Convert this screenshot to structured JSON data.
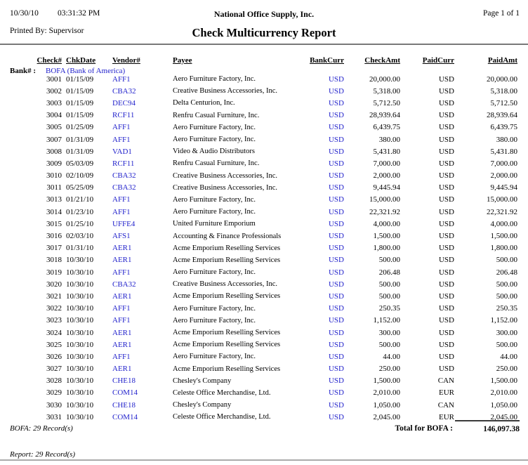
{
  "page": {
    "date": "10/30/10",
    "time": "03:31:32 PM",
    "printed_by": "Printed By: Supervisor",
    "company": "National Office Supply, Inc.",
    "title": "Check Multicurrency Report",
    "page_label": "Page 1 of 1"
  },
  "colors": {
    "link_blue": "#2323cc"
  },
  "table": {
    "columns": [
      "Check#",
      "ChkDate",
      "Vendor#",
      "Payee",
      "BankCurr",
      "CheckAmt",
      "PaidCurr",
      "PaidAmt"
    ],
    "bank_label": "Bank# :",
    "bank_value": "BOFA (Bank of America)",
    "rows": [
      [
        "3001",
        "01/15/09",
        "AFF1",
        "Aero Furniture Factory, Inc.",
        "USD",
        "20,000.00",
        "USD",
        "20,000.00"
      ],
      [
        "3002",
        "01/15/09",
        "CBA32",
        "Creative Business Accessories, Inc.",
        "USD",
        "5,318.00",
        "USD",
        "5,318.00"
      ],
      [
        "3003",
        "01/15/09",
        "DEC94",
        "Delta Centurion, Inc.",
        "USD",
        "5,712.50",
        "USD",
        "5,712.50"
      ],
      [
        "3004",
        "01/15/09",
        "RCF11",
        "Renfru Casual Furniture, Inc.",
        "USD",
        "28,939.64",
        "USD",
        "28,939.64"
      ],
      [
        "3005",
        "01/25/09",
        "AFF1",
        "Aero Furniture Factory, Inc.",
        "USD",
        "6,439.75",
        "USD",
        "6,439.75"
      ],
      [
        "3007",
        "01/31/09",
        "AFF1",
        "Aero Furniture Factory, Inc.",
        "USD",
        "380.00",
        "USD",
        "380.00"
      ],
      [
        "3008",
        "01/31/09",
        "VAD1",
        "Video & Audio Distributors",
        "USD",
        "5,431.80",
        "USD",
        "5,431.80"
      ],
      [
        "3009",
        "05/03/09",
        "RCF11",
        "Renfru Casual Furniture, Inc.",
        "USD",
        "7,000.00",
        "USD",
        "7,000.00"
      ],
      [
        "3010",
        "02/10/09",
        "CBA32",
        "Creative Business Accessories, Inc.",
        "USD",
        "2,000.00",
        "USD",
        "2,000.00"
      ],
      [
        "3011",
        "05/25/09",
        "CBA32",
        "Creative Business Accessories, Inc.",
        "USD",
        "9,445.94",
        "USD",
        "9,445.94"
      ],
      [
        "3013",
        "01/21/10",
        "AFF1",
        "Aero Furniture Factory, Inc.",
        "USD",
        "15,000.00",
        "USD",
        "15,000.00"
      ],
      [
        "3014",
        "01/23/10",
        "AFF1",
        "Aero Furniture Factory, Inc.",
        "USD",
        "22,321.92",
        "USD",
        "22,321.92"
      ],
      [
        "3015",
        "01/25/10",
        "UFFE4",
        "United Furniture Emporium",
        "USD",
        "4,000.00",
        "USD",
        "4,000.00"
      ],
      [
        "3016",
        "02/03/10",
        "AFS1",
        "Accounting & Finance Professionals",
        "USD",
        "1,500.00",
        "USD",
        "1,500.00"
      ],
      [
        "3017",
        "01/31/10",
        "AER1",
        "Acme Emporium Reselling Services",
        "USD",
        "1,800.00",
        "USD",
        "1,800.00"
      ],
      [
        "3018",
        "10/30/10",
        "AER1",
        "Acme Emporium Reselling Services",
        "USD",
        "500.00",
        "USD",
        "500.00"
      ],
      [
        "3019",
        "10/30/10",
        "AFF1",
        "Aero Furniture Factory, Inc.",
        "USD",
        "206.48",
        "USD",
        "206.48"
      ],
      [
        "3020",
        "10/30/10",
        "CBA32",
        "Creative Business Accessories, Inc.",
        "USD",
        "500.00",
        "USD",
        "500.00"
      ],
      [
        "3021",
        "10/30/10",
        "AER1",
        "Acme Emporium Reselling Services",
        "USD",
        "500.00",
        "USD",
        "500.00"
      ],
      [
        "3022",
        "10/30/10",
        "AFF1",
        "Aero Furniture Factory, Inc.",
        "USD",
        "250.35",
        "USD",
        "250.35"
      ],
      [
        "3023",
        "10/30/10",
        "AFF1",
        "Aero Furniture Factory, Inc.",
        "USD",
        "1,152.00",
        "USD",
        "1,152.00"
      ],
      [
        "3024",
        "10/30/10",
        "AER1",
        "Acme Emporium Reselling Services",
        "USD",
        "300.00",
        "USD",
        "300.00"
      ],
      [
        "3025",
        "10/30/10",
        "AER1",
        "Acme Emporium Reselling Services",
        "USD",
        "500.00",
        "USD",
        "500.00"
      ],
      [
        "3026",
        "10/30/10",
        "AFF1",
        "Aero Furniture Factory, Inc.",
        "USD",
        "44.00",
        "USD",
        "44.00"
      ],
      [
        "3027",
        "10/30/10",
        "AER1",
        "Acme Emporium Reselling Services",
        "USD",
        "250.00",
        "USD",
        "250.00"
      ],
      [
        "3028",
        "10/30/10",
        "CHE18",
        "Chesley's Company",
        "USD",
        "1,500.00",
        "CAN",
        "1,500.00"
      ],
      [
        "3029",
        "10/30/10",
        "COM14",
        "Celeste Office Merchandise, Ltd.",
        "USD",
        "2,010.00",
        "EUR",
        "2,010.00"
      ],
      [
        "3030",
        "10/30/10",
        "CHE18",
        "Chesley's Company",
        "USD",
        "1,050.00",
        "CAN",
        "1,050.00"
      ],
      [
        "3031",
        "10/30/10",
        "COM14",
        "Celeste Office Merchandise, Ltd.",
        "USD",
        "2,045.00",
        "EUR",
        "2,045.00"
      ]
    ],
    "total_label": "Total for BOFA :",
    "total_value": "146,097.38",
    "bank_records": "BOFA: 29 Record(s)",
    "report_records": "Report: 29 Record(s)"
  }
}
